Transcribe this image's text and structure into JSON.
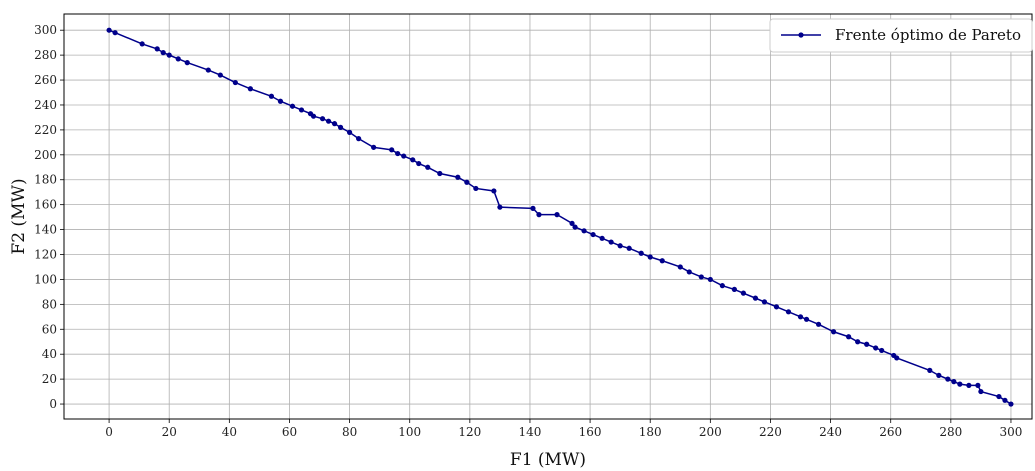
{
  "chart_data": {
    "type": "line",
    "xlabel": "F1 (MW)",
    "ylabel": "F2 (MW)",
    "xlim": [
      -15,
      307
    ],
    "ylim": [
      -12,
      313
    ],
    "x_ticks": [
      0,
      20,
      40,
      60,
      80,
      100,
      120,
      140,
      160,
      180,
      200,
      220,
      240,
      260,
      280,
      300
    ],
    "y_ticks": [
      0,
      20,
      40,
      60,
      80,
      100,
      120,
      140,
      160,
      180,
      200,
      220,
      240,
      260,
      280,
      300
    ],
    "grid": true,
    "legend_position": "top-right",
    "colors": {
      "series": "#00008b",
      "grid": "#b0b0b0",
      "axis": "#000000",
      "legend_border": "#cccccc"
    },
    "series": [
      {
        "name": "Frente óptimo de Pareto",
        "x": [
          0,
          2,
          11,
          16,
          18,
          20,
          23,
          26,
          33,
          37,
          42,
          47,
          54,
          57,
          61,
          64,
          67,
          68,
          71,
          73,
          75,
          77,
          80,
          83,
          88,
          94,
          96,
          98,
          101,
          103,
          106,
          110,
          116,
          119,
          122,
          128,
          130,
          141,
          143,
          149,
          154,
          155,
          158,
          161,
          164,
          167,
          170,
          173,
          177,
          180,
          184,
          190,
          193,
          197,
          200,
          204,
          208,
          211,
          215,
          218,
          222,
          226,
          230,
          232,
          236,
          241,
          246,
          249,
          252,
          255,
          257,
          261,
          262,
          273,
          276,
          279,
          281,
          283,
          286,
          289,
          290,
          296,
          298,
          300
        ],
        "y": [
          300,
          298,
          289,
          285,
          282,
          280,
          277,
          274,
          268,
          264,
          258,
          253,
          247,
          243,
          239,
          236,
          233,
          231,
          229,
          227,
          225,
          222,
          218,
          213,
          206,
          204,
          201,
          199,
          196,
          193,
          190,
          185,
          182,
          178,
          173,
          171,
          158,
          157,
          152,
          152,
          145,
          142,
          139,
          136,
          133,
          130,
          127,
          125,
          121,
          118,
          115,
          110,
          106,
          102,
          100,
          95,
          92,
          89,
          85,
          82,
          78,
          74,
          70,
          68,
          64,
          58,
          54,
          50,
          48,
          45,
          43,
          39,
          37,
          27,
          23,
          20,
          18,
          16,
          15,
          15,
          10,
          6,
          3,
          0
        ]
      }
    ]
  }
}
